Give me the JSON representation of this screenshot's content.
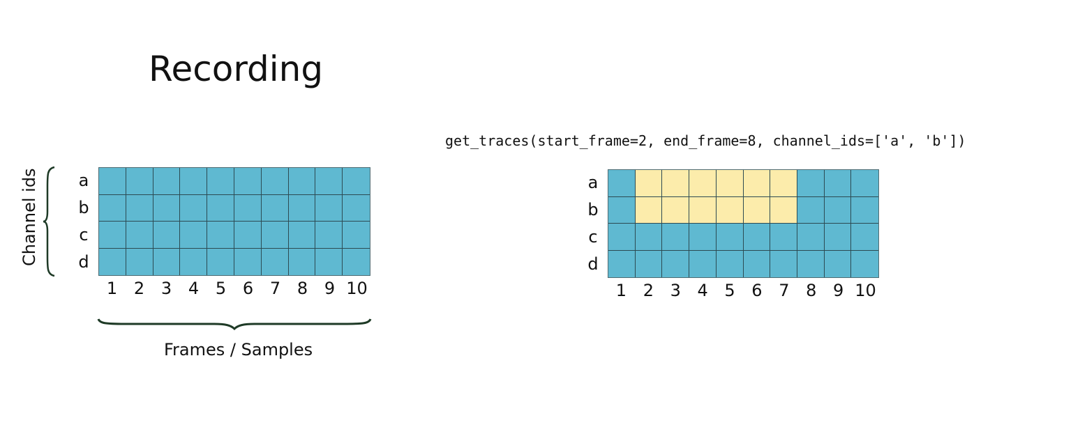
{
  "title": "Recording",
  "code_call": "get_traces(start_frame=2, end_frame=8, channel_ids=['a', 'b'])",
  "channel_axis_label": "Channel ids",
  "frame_axis_label": "Frames / Samples",
  "channels": [
    "a",
    "b",
    "c",
    "d"
  ],
  "frames": [
    "1",
    "2",
    "3",
    "4",
    "5",
    "6",
    "7",
    "8",
    "9",
    "10"
  ],
  "selection": {
    "channels": [
      "a",
      "b"
    ],
    "start_frame": 2,
    "end_frame": 8
  },
  "colors": {
    "cell": "#5fb9d1",
    "selected_cell": "#fcecab",
    "grid_line": "#2c4a52",
    "brace": "#1e3a26"
  }
}
